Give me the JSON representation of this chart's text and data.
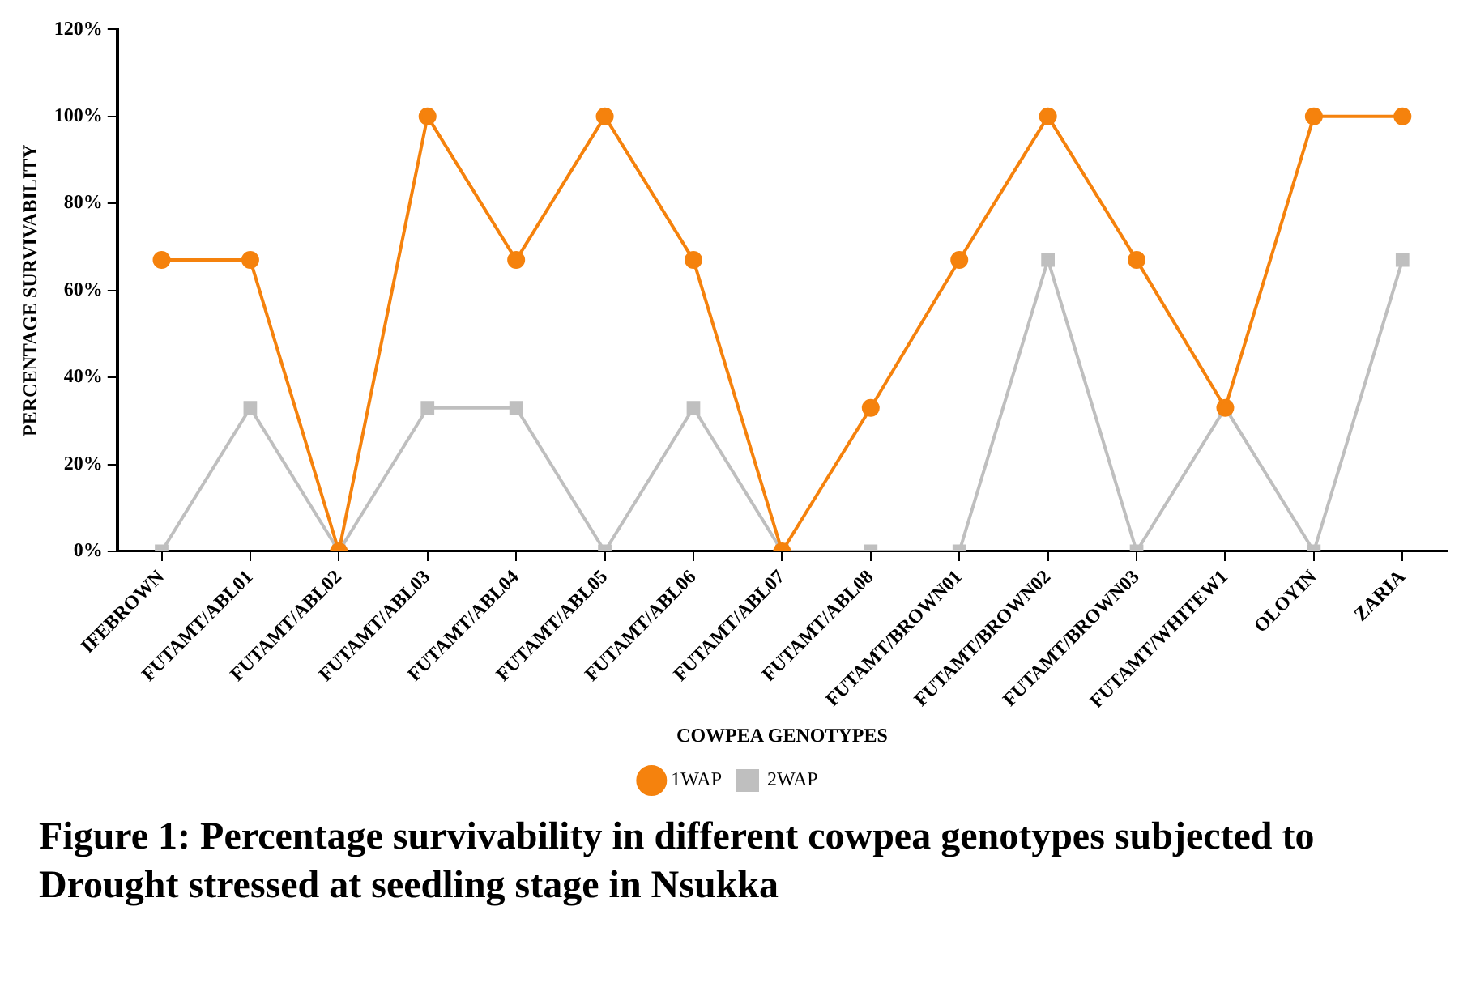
{
  "chart_data": {
    "type": "line",
    "title": "Figure 1: Percentage survivability in different cowpea genotypes subjected to Drought stressed at seedling stage in Nsukka",
    "xlabel": "COWPEA GENOTYPES",
    "ylabel": "PERCENTAGE SURVIVABILITY",
    "categories": [
      "IFEBROWN",
      "FUTAMT/ABL01",
      "FUTAMT/ABL02",
      "FUTAMT/ABL03",
      "FUTAMT/ABL04",
      "FUTAMT/ABL05",
      "FUTAMT/ABL06",
      "FUTAMT/ABL07",
      "FUTAMT/ABL08",
      "FUTAMT/BROWN01",
      "FUTAMT/BROWN02",
      "FUTAMT/BROWN03",
      "FUTAMT/WHITEW1",
      "OLOYIN",
      "ZARIA"
    ],
    "series": [
      {
        "name": "1WAP",
        "color": "#f5820d",
        "marker": "circle",
        "values": [
          67,
          67,
          0,
          100,
          67,
          100,
          67,
          0,
          33,
          67,
          100,
          67,
          33,
          100,
          100
        ]
      },
      {
        "name": "2WAP",
        "color": "#bfbfbf",
        "marker": "square",
        "values": [
          0,
          33,
          0,
          33,
          33,
          0,
          33,
          0,
          0,
          0,
          67,
          0,
          33,
          0,
          67
        ]
      }
    ],
    "ylim": [
      0,
      120
    ],
    "yticks": [
      {
        "value": 0,
        "label": "0%"
      },
      {
        "value": 20,
        "label": "20%"
      },
      {
        "value": 40,
        "label": "40%"
      },
      {
        "value": 60,
        "label": "60%"
      },
      {
        "value": 80,
        "label": "80%"
      },
      {
        "value": 100,
        "label": "100%"
      },
      {
        "value": 120,
        "label": "120%"
      }
    ],
    "grid": false,
    "legend": "bottom"
  }
}
